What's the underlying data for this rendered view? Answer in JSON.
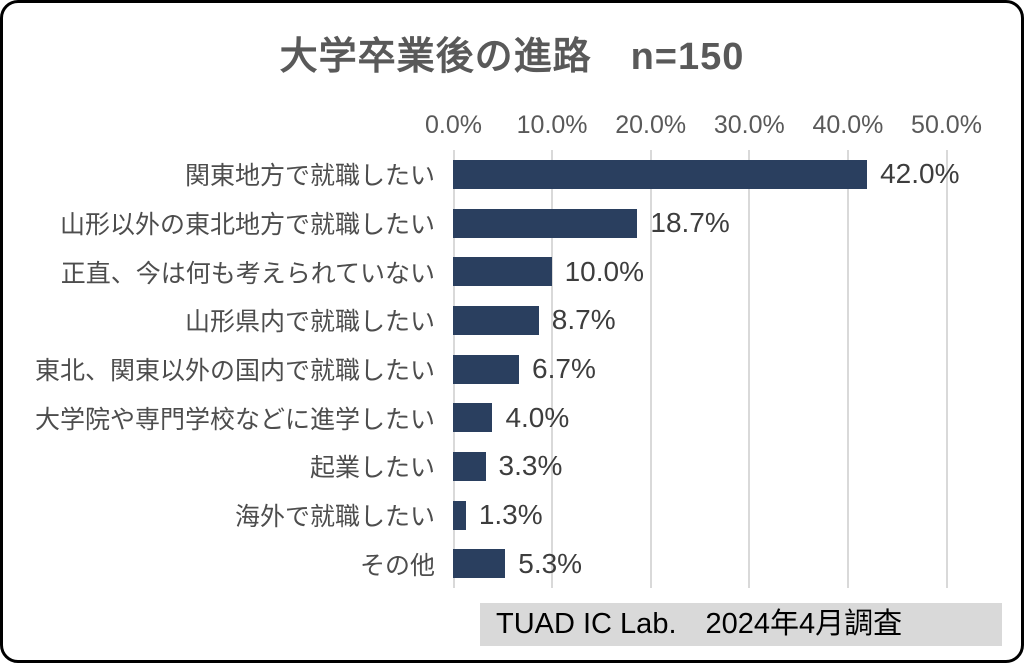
{
  "title": "大学卒業後の進路　n=150",
  "source_box": {
    "text": "TUAD IC Lab.　2024年4月調査"
  },
  "chart_data": {
    "type": "bar",
    "orientation": "horizontal",
    "title": "大学卒業後の進路　n=150",
    "sample_size": "n=150",
    "categories": [
      "関東地方で就職したい",
      "山形以外の東北地方で就職したい",
      "正直、今は何も考えられていない",
      "山形県内で就職したい",
      "東北、関東以外の国内で就職したい",
      "大学院や専門学校などに進学したい",
      "起業したい",
      "海外で就職したい",
      "その他"
    ],
    "values": [
      42.0,
      18.7,
      10.0,
      8.7,
      6.7,
      4.0,
      3.3,
      1.3,
      5.3
    ],
    "value_labels": [
      "42.0%",
      "18.7%",
      "10.0%",
      "8.7%",
      "6.7%",
      "4.0%",
      "3.3%",
      "1.3%",
      "5.3%"
    ],
    "x_ticks": [
      "0.0%",
      "10.0%",
      "20.0%",
      "30.0%",
      "40.0%",
      "50.0%"
    ],
    "xlim": [
      0,
      50
    ],
    "grid": true,
    "legend": false
  },
  "colors": {
    "bar": "#2A3F5F",
    "gridline": "#D9D9D9",
    "title_text": "#595959",
    "category_text": "#4D4D4D",
    "value_text": "#3D3D3D",
    "tick_text": "#595959",
    "source_bg": "#D9D9D9",
    "source_text": "#000000",
    "border": "#000000",
    "background": "#FFFFFF"
  }
}
